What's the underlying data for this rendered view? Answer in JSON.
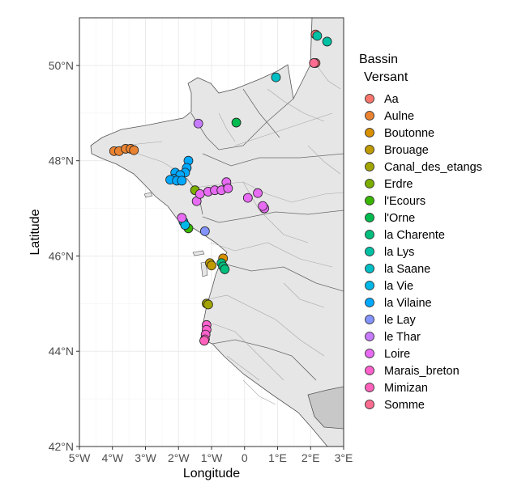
{
  "chart_data": {
    "type": "scatter",
    "xlabel": "Longitude",
    "ylabel": "Latitude",
    "xlim": [
      -5,
      3
    ],
    "ylim": [
      42,
      51
    ],
    "x_ticks": [
      {
        "value": -5,
        "label": "5°W"
      },
      {
        "value": -4,
        "label": "4°W"
      },
      {
        "value": -3,
        "label": "3°W"
      },
      {
        "value": -2,
        "label": "2°W"
      },
      {
        "value": -1,
        "label": "1°W"
      },
      {
        "value": 0,
        "label": "0"
      },
      {
        "value": 1,
        "label": "1°E"
      },
      {
        "value": 2,
        "label": "2°E"
      },
      {
        "value": 3,
        "label": "3°E"
      }
    ],
    "y_ticks": [
      {
        "value": 42,
        "label": "42°N"
      },
      {
        "value": 44,
        "label": "44°N"
      },
      {
        "value": 46,
        "label": "46°N"
      },
      {
        "value": 48,
        "label": "48°N"
      },
      {
        "value": 50,
        "label": "50°N"
      }
    ],
    "grid": true,
    "legend": {
      "title_line1": "Bassin",
      "title_line2": "Versant",
      "placement": "right"
    },
    "series": [
      {
        "name": "Aa",
        "color": "#F8766D",
        "points": [
          [
            2.15,
            50.65
          ],
          [
            2.15,
            50.05
          ]
        ]
      },
      {
        "name": "Aulne",
        "color": "#EA8331",
        "points": [
          [
            -3.95,
            48.2
          ],
          [
            -3.8,
            48.2
          ],
          [
            -3.6,
            48.25
          ],
          [
            -3.45,
            48.25
          ],
          [
            -3.35,
            48.22
          ]
        ]
      },
      {
        "name": "Boutonne",
        "color": "#D89000",
        "points": [
          [
            -0.65,
            45.95
          ]
        ]
      },
      {
        "name": "Brouage",
        "color": "#C09B00",
        "points": [
          [
            -1.05,
            45.85
          ],
          [
            -1.0,
            45.8
          ]
        ]
      },
      {
        "name": "Canal_des_etangs",
        "color": "#A3A500",
        "points": [
          [
            -1.15,
            45.0
          ],
          [
            -1.1,
            44.98
          ]
        ]
      },
      {
        "name": "Erdre",
        "color": "#7CAE00",
        "points": [
          [
            -1.5,
            47.38
          ]
        ]
      },
      {
        "name": "l'Ecours",
        "color": "#39B600",
        "points": [
          [
            -1.7,
            46.58
          ]
        ]
      },
      {
        "name": "l'Orne",
        "color": "#00BB4E",
        "points": [
          [
            -0.25,
            48.8
          ]
        ]
      },
      {
        "name": "la Charente",
        "color": "#00BF7D",
        "points": [
          [
            -0.7,
            45.85
          ],
          [
            -0.65,
            45.78
          ],
          [
            -0.6,
            45.72
          ]
        ]
      },
      {
        "name": "la Lys",
        "color": "#00C1A3",
        "points": [
          [
            2.2,
            50.62
          ],
          [
            2.5,
            50.5
          ]
        ]
      },
      {
        "name": "la Saane",
        "color": "#00BFC4",
        "points": [
          [
            0.95,
            49.75
          ]
        ]
      },
      {
        "name": "la Vie",
        "color": "#00B8E7",
        "points": [
          [
            -1.85,
            46.72
          ],
          [
            -1.8,
            46.65
          ]
        ]
      },
      {
        "name": "la Vilaine",
        "color": "#00A9FF",
        "points": [
          [
            -1.7,
            48.0
          ],
          [
            -1.75,
            47.85
          ],
          [
            -1.8,
            47.75
          ],
          [
            -2.1,
            47.75
          ],
          [
            -1.95,
            47.7
          ],
          [
            -2.15,
            47.62
          ],
          [
            -2.25,
            47.6
          ],
          [
            -2.05,
            47.58
          ],
          [
            -1.9,
            47.58
          ]
        ]
      },
      {
        "name": "le Lay",
        "color": "#8494FF",
        "points": [
          [
            -1.2,
            46.52
          ]
        ]
      },
      {
        "name": "le Thar",
        "color": "#C77CFF",
        "points": [
          [
            -1.4,
            48.78
          ]
        ]
      },
      {
        "name": "Loire",
        "color": "#E76BF3",
        "points": [
          [
            -1.45,
            47.15
          ],
          [
            -1.35,
            47.3
          ],
          [
            -1.1,
            47.35
          ],
          [
            -0.9,
            47.38
          ],
          [
            -0.7,
            47.38
          ],
          [
            -0.55,
            47.55
          ],
          [
            -0.5,
            47.42
          ],
          [
            0.1,
            47.22
          ],
          [
            0.4,
            47.32
          ],
          [
            0.6,
            47.0
          ],
          [
            0.55,
            47.05
          ],
          [
            -1.9,
            46.8
          ]
        ]
      },
      {
        "name": "Marais_breton",
        "color": "#FF61CC",
        "points": [
          [
            -1.15,
            44.55
          ],
          [
            -1.15,
            44.45
          ],
          [
            -1.18,
            44.35
          ],
          [
            -1.2,
            44.25
          ]
        ]
      },
      {
        "name": "Mimizan",
        "color": "#FF62BC",
        "points": [
          [
            -1.22,
            44.22
          ]
        ]
      },
      {
        "name": "Somme",
        "color": "#FF6C91",
        "points": [
          [
            2.1,
            50.05
          ]
        ]
      }
    ]
  }
}
